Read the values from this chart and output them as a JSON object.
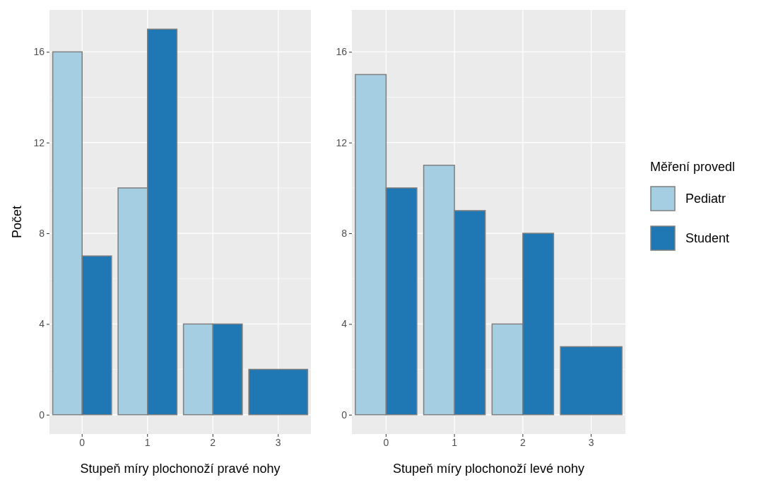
{
  "chart_data": [
    {
      "type": "bar",
      "xlabel": "Stupeň míry plochonoží pravé nohy",
      "ylabel": "Počet",
      "categories": [
        "0",
        "1",
        "2",
        "3"
      ],
      "series": [
        {
          "color": "#a6cee3",
          "values": [
            16,
            10,
            4,
            null
          ]
        },
        {
          "color": "#1f78b4",
          "values": [
            7,
            17,
            4,
            2
          ]
        }
      ],
      "ylim": [
        -0.85,
        17.85
      ],
      "yticks": [
        0,
        4,
        8,
        12,
        16
      ],
      "grid": true,
      "legend": false
    },
    {
      "type": "bar",
      "xlabel": "Stupeň míry plochonoží levé nohy",
      "legend_title": "Měření provedl",
      "categories": [
        "0",
        "1",
        "2",
        "3"
      ],
      "series": [
        {
          "name": "Pediatr",
          "color": "#a6cee3",
          "values": [
            15,
            11,
            4,
            null
          ]
        },
        {
          "name": "Student",
          "color": "#1f78b4",
          "values": [
            10,
            9,
            8,
            3
          ]
        }
      ],
      "ylim": [
        -0.85,
        17.85
      ],
      "yticks": [
        0,
        4,
        8,
        12,
        16
      ],
      "grid": true,
      "legend": "right"
    }
  ]
}
